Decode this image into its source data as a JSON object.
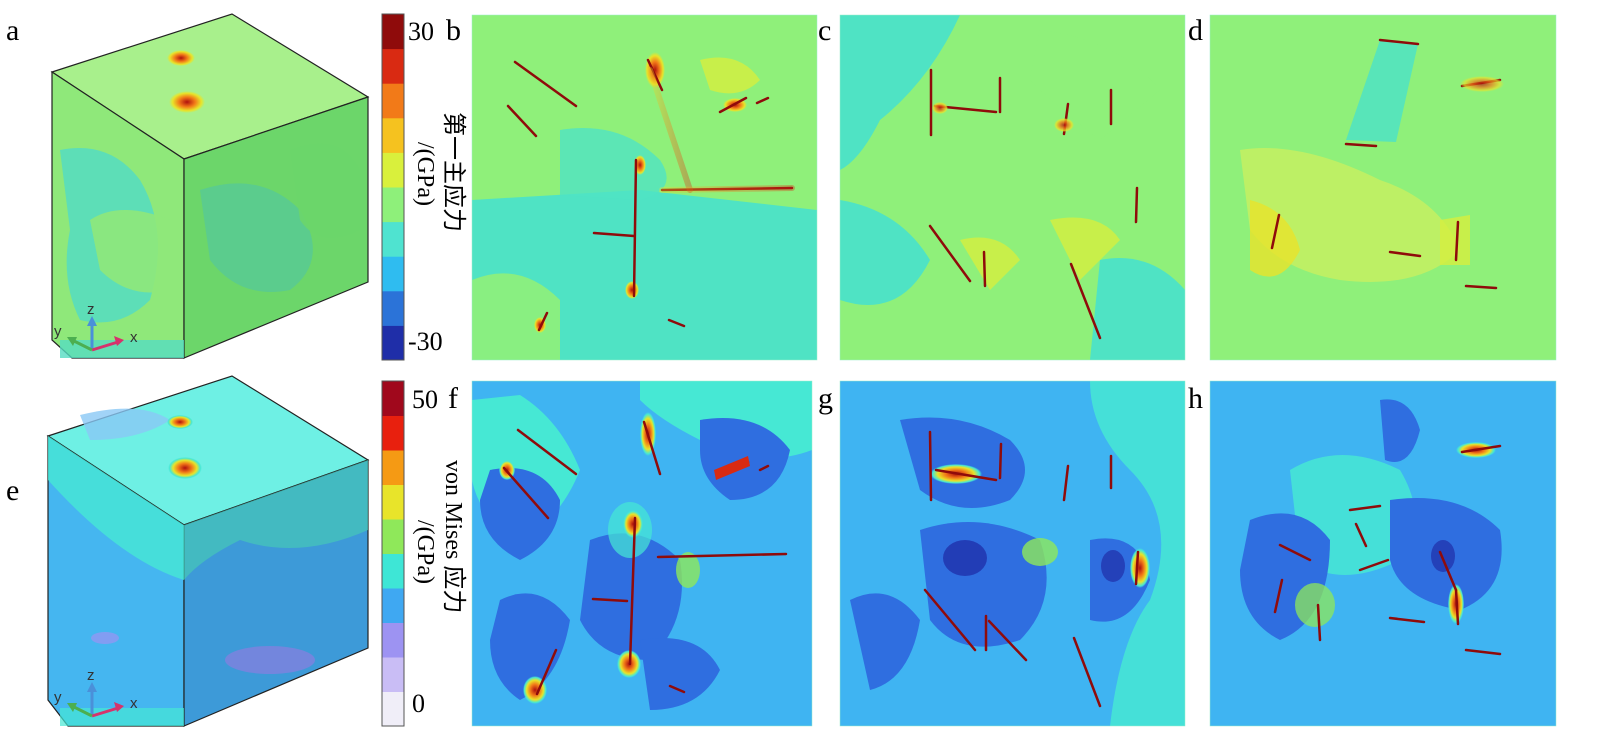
{
  "panels": {
    "a": "a",
    "b": "b",
    "c": "c",
    "d": "d",
    "e": "e",
    "f": "f",
    "g": "g",
    "h": "h"
  },
  "colorbar_top": {
    "max_label": "30",
    "min_label": "-30",
    "title_line1": "第一主应力",
    "title_line2": "/(GPa)",
    "colors": [
      "#1f2ea8",
      "#2b73d8",
      "#2fbcf0",
      "#4fe3d0",
      "#8ef07a",
      "#d9f03c",
      "#f5c21f",
      "#f27a18",
      "#d92a12",
      "#8f0b0b"
    ]
  },
  "colorbar_bottom": {
    "max_label": "50",
    "min_label": "0",
    "title_line1": "von Mises 应力",
    "title_line2": "/(GPa)",
    "colors": [
      "#f0eef8",
      "#c9bdf5",
      "#9d93f2",
      "#3fa8f2",
      "#3ee6d6",
      "#8fe85a",
      "#e8e42a",
      "#f59a14",
      "#e8200e",
      "#a0081c"
    ]
  },
  "axes": {
    "x": "x",
    "y": "y",
    "z": "z"
  },
  "colors": {
    "top_base": "#8ff07a",
    "top_cyan": "#4fe3c4",
    "top_yellow": "#d6ef3e",
    "bottom_base": "#3fb4f2",
    "bottom_dark": "#2f6ee0",
    "bottom_cyan": "#46e8d4",
    "crack": "#8f0b0b"
  }
}
